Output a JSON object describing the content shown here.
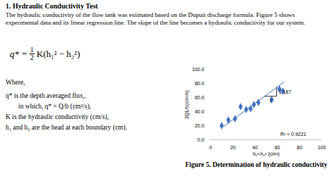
{
  "document": {
    "heading": "1.  Hydraulic Conductivity Test",
    "paragraph": "The hydraulic conductivity of the flow tank was estimated based on the Dupuit discharge formula.  Figure 5 shows experimental data and its linear regression line. The slope of the line becomes a hydraulic conductivity for our system.",
    "formula": {
      "lhs": "q* =",
      "num": "1",
      "den": "2",
      "rhs": "K(h₁² − h₂²)"
    },
    "where": "Where,",
    "definitions": [
      "q* is the depth averaged flux,.",
      "in which, q* = Q/b  (cm²/s),",
      "K is the hydraulic conductivity (cm/s),",
      "h₁ and h₂ are the head at each boundary (cm)."
    ],
    "caption": "Figure 5. Determination of hydraulic conductivity"
  },
  "chart_data": {
    "type": "scatter",
    "xlabel": "h₁²-h₂² (cm²)",
    "ylabel": "2QL/b(cm³/s)",
    "x": [
      10,
      16,
      22,
      27,
      32,
      36,
      39,
      43,
      55,
      62,
      65
    ],
    "values": [
      20,
      28,
      30,
      47,
      43,
      44,
      50,
      53,
      57,
      72,
      69
    ],
    "color": "#4472c4",
    "marker": "diamond",
    "trendline": {
      "x": [
        12,
        66
      ],
      "values": [
        19,
        82
      ],
      "color": "#4472c4"
    },
    "slope_label": "1.187",
    "run_label": "1",
    "r2_label": "R² = 0.9221",
    "xlim": [
      0,
      100
    ],
    "xticks": [
      0,
      20,
      40,
      60,
      80,
      100
    ],
    "ylim": [
      0,
      100
    ],
    "yticks": [
      {
        "value": 0,
        "label": "0.0"
      },
      {
        "value": 20,
        "label": "20.0"
      },
      {
        "value": 40,
        "label": "40.0"
      },
      {
        "value": 60,
        "label": "60.0"
      },
      {
        "value": 80,
        "label": "80.0"
      },
      {
        "value": 100,
        "label": "100.0"
      }
    ]
  }
}
